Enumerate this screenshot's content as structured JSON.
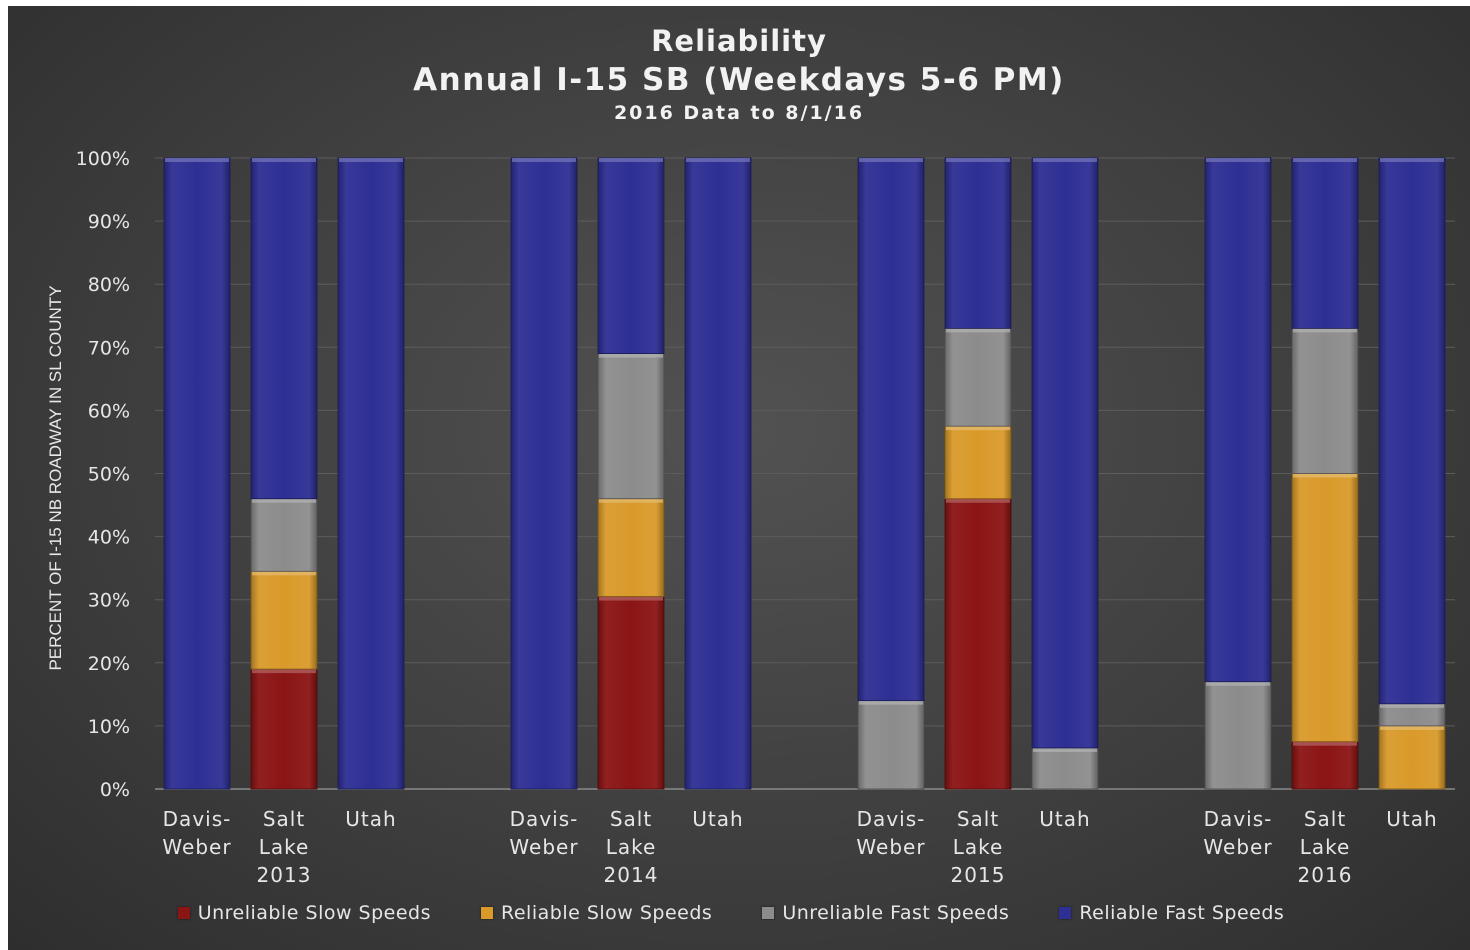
{
  "chart_data": {
    "type": "bar",
    "stacked": true,
    "title": "Reliability",
    "subtitle": "Annual I-15 SB (Weekdays 5-6 PM)",
    "note": "2016 Data to 8/1/16",
    "ylabel": "PERCENT OF I-15 NB ROADWAY IN SL COUNTY",
    "ylim": [
      0,
      100
    ],
    "yticks": [
      "0%",
      "10%",
      "20%",
      "30%",
      "40%",
      "50%",
      "60%",
      "70%",
      "80%",
      "90%",
      "100%"
    ],
    "grid": true,
    "legend_position": "bottom",
    "groups": [
      {
        "year": "2013",
        "categories": [
          [
            "Davis-",
            "Weber"
          ],
          [
            "Salt",
            "Lake"
          ],
          [
            "Utah"
          ]
        ]
      },
      {
        "year": "2014",
        "categories": [
          [
            "Davis-",
            "Weber"
          ],
          [
            "Salt",
            "Lake"
          ],
          [
            "Utah"
          ]
        ]
      },
      {
        "year": "2015",
        "categories": [
          [
            "Davis-",
            "Weber"
          ],
          [
            "Salt",
            "Lake"
          ],
          [
            "Utah"
          ]
        ]
      },
      {
        "year": "2016",
        "categories": [
          [
            "Davis-",
            "Weber"
          ],
          [
            "Salt",
            "Lake"
          ],
          [
            "Utah"
          ]
        ]
      }
    ],
    "series": [
      {
        "name": "Unreliable Slow Speeds",
        "color": "#8b1414",
        "values": [
          0,
          19,
          0,
          0,
          30.5,
          0,
          0,
          46,
          0,
          0,
          7.5,
          0
        ]
      },
      {
        "name": "Reliable Slow Speeds",
        "color": "#d99a2a",
        "values": [
          0,
          15.5,
          0,
          0,
          15.5,
          0,
          0,
          11.5,
          0,
          0,
          42.5,
          10
        ]
      },
      {
        "name": "Unreliable Fast Speeds",
        "color": "#8c8c8c",
        "values": [
          0,
          11.5,
          0,
          0,
          23,
          0,
          14,
          15.5,
          6.5,
          17,
          23,
          3.5
        ]
      },
      {
        "name": "Reliable Fast Speeds",
        "color": "#2e2f94",
        "values": [
          100,
          54,
          100,
          100,
          31,
          100,
          86,
          27,
          93.5,
          83,
          27,
          86.5
        ]
      }
    ]
  }
}
